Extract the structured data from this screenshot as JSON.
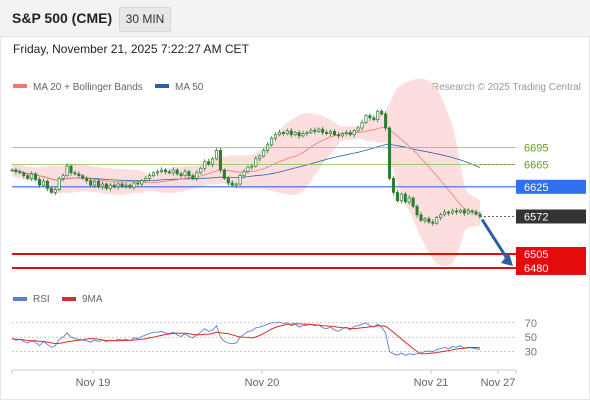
{
  "header": {
    "title": "S&P 500 (CME)",
    "timeframe": "30 MIN"
  },
  "datetime": "Friday, November 21, 2025 7:22:27 AM CET",
  "legend": {
    "ma20_label": "MA 20 + Bollinger Bands",
    "ma50_label": "MA 50",
    "copyright": "Research © 2025 Trading Central",
    "rsi_label": "RSI",
    "rsi_ma_label": "9MA"
  },
  "colors": {
    "ma20": "#f07a72",
    "ma50": "#2b5fa6",
    "bollinger_fill": "#fbd3d3",
    "pivot": "#2f6ff0",
    "resistance": "#8cc152",
    "support": "#e30b0b",
    "current": "#333333",
    "candle": "#2e7d32",
    "rsi": "#5b7fd0",
    "rsi_ma": "#d32f2f",
    "arrow": "#2b5fa6"
  },
  "chart_data": {
    "type": "candlestick",
    "x_ticks": [
      "Nov 19",
      "Nov 20",
      "Nov 21",
      "Nov 27"
    ],
    "levels": [
      {
        "label": "6695",
        "value": 6695,
        "kind": "resistance"
      },
      {
        "label": "6665",
        "value": 6665,
        "kind": "resistance"
      },
      {
        "label": "6625",
        "value": 6625,
        "kind": "pivot"
      },
      {
        "label": "6572",
        "value": 6572,
        "kind": "current"
      },
      {
        "label": "6505",
        "value": 6505,
        "kind": "support"
      },
      {
        "label": "6480",
        "value": 6480,
        "kind": "support"
      }
    ],
    "close": [
      6655,
      6652,
      6650,
      6645,
      6640,
      6648,
      6638,
      6628,
      6635,
      6622,
      6615,
      6620,
      6640,
      6645,
      6662,
      6650,
      6648,
      6645,
      6640,
      6636,
      6628,
      6635,
      6625,
      6630,
      6622,
      6628,
      6625,
      6630,
      6626,
      6628,
      6624,
      6632,
      6630,
      6636,
      6640,
      6645,
      6650,
      6652,
      6655,
      6652,
      6650,
      6655,
      6648,
      6645,
      6652,
      6645,
      6640,
      6650,
      6658,
      6670,
      6665,
      6675,
      6690,
      6655,
      6640,
      6632,
      6628,
      6630,
      6645,
      6652,
      6660,
      6662,
      6675,
      6680,
      6690,
      6700,
      6712,
      6718,
      6722,
      6720,
      6725,
      6718,
      6722,
      6716,
      6720,
      6722,
      6726,
      6724,
      6728,
      6722,
      6720,
      6724,
      6718,
      6716,
      6720,
      6722,
      6718,
      6725,
      6730,
      6740,
      6752,
      6748,
      6745,
      6760,
      6755,
      6730,
      6640,
      6615,
      6600,
      6612,
      6598,
      6605,
      6590,
      6575,
      6565,
      6568,
      6562,
      6560,
      6570,
      6575,
      6580,
      6578,
      6582,
      6580,
      6583,
      6578,
      6582,
      6580,
      6576,
      6572
    ],
    "rsi_ticks": [
      70,
      50,
      30
    ],
    "rsi": [
      48,
      46,
      47,
      44,
      42,
      45,
      43,
      38,
      44,
      40,
      36,
      38,
      47,
      50,
      56,
      50,
      48,
      47,
      46,
      45,
      43,
      46,
      44,
      46,
      44,
      46,
      45,
      47,
      46,
      47,
      45,
      49,
      48,
      51,
      53,
      55,
      57,
      57,
      58,
      56,
      55,
      57,
      53,
      51,
      55,
      51,
      49,
      53,
      57,
      62,
      58,
      60,
      66,
      50,
      44,
      42,
      41,
      42,
      50,
      54,
      58,
      59,
      63,
      64,
      66,
      68,
      70,
      70,
      71,
      69,
      70,
      66,
      68,
      64,
      66,
      67,
      68,
      66,
      67,
      63,
      62,
      64,
      60,
      58,
      62,
      64,
      60,
      65,
      66,
      68,
      70,
      66,
      64,
      68,
      64,
      56,
      30,
      27,
      25,
      28,
      25,
      27,
      26,
      27,
      28,
      30,
      31,
      30,
      33,
      34,
      36,
      34,
      37,
      36,
      38,
      35,
      36,
      35,
      34,
      33
    ],
    "rsi_ylim": [
      10,
      85
    ],
    "price_ylim": [
      6455,
      6780
    ]
  }
}
